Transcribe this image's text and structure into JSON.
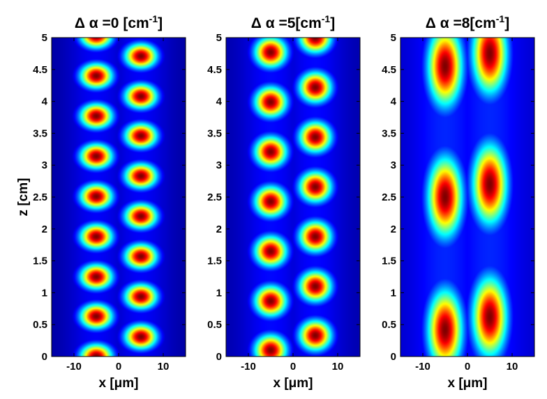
{
  "chart_data": [
    {
      "type": "heatmap",
      "title": "Δ α =0 [cm-1]",
      "title_prefix": "Δ α =0 [cm",
      "title_sup": "-1",
      "title_suffix": "]",
      "xlabel": "x [μm]",
      "ylabel": "z [cm]",
      "xlim": [
        -15,
        15
      ],
      "ylim": [
        0,
        5
      ],
      "xticks": [
        "-10",
        "0",
        "10"
      ],
      "yticks": [
        "0",
        "0.5",
        "1",
        "1.5",
        "2",
        "2.5",
        "3",
        "3.5",
        "4",
        "4.5",
        "5"
      ],
      "colormap": "jet",
      "spot_sigma": [
        2.4,
        0.13
      ],
      "background_level": 0.03,
      "spots": [
        {
          "x": -5,
          "z": 0.0
        },
        {
          "x": -5,
          "z": 0.63
        },
        {
          "x": -5,
          "z": 1.25
        },
        {
          "x": -5,
          "z": 1.88
        },
        {
          "x": -5,
          "z": 2.51
        },
        {
          "x": -5,
          "z": 3.14
        },
        {
          "x": -5,
          "z": 3.77
        },
        {
          "x": -5,
          "z": 4.4
        },
        {
          "x": -5,
          "z": 5.03
        },
        {
          "x": 5,
          "z": 0.31
        },
        {
          "x": 5,
          "z": 0.94
        },
        {
          "x": 5,
          "z": 1.57
        },
        {
          "x": 5,
          "z": 2.2
        },
        {
          "x": 5,
          "z": 2.83
        },
        {
          "x": 5,
          "z": 3.46
        },
        {
          "x": 5,
          "z": 4.08
        },
        {
          "x": 5,
          "z": 4.71
        }
      ]
    },
    {
      "type": "heatmap",
      "title": "Δ α =5[cm-1]",
      "title_prefix": "Δ α =5[cm",
      "title_sup": "-1",
      "title_suffix": "]",
      "xlabel": "x [μm]",
      "ylabel": "",
      "xlim": [
        -15,
        15
      ],
      "ylim": [
        0,
        5
      ],
      "xticks": [
        "-10",
        "0",
        "10"
      ],
      "yticks": [
        "0",
        "0.5",
        "1",
        "1.5",
        "2",
        "2.5",
        "3",
        "3.5",
        "4",
        "4.5",
        "5"
      ],
      "colormap": "jet",
      "spot_sigma": [
        2.4,
        0.16
      ],
      "background_level": 0.04,
      "spots": [
        {
          "x": -5,
          "z": 0.1
        },
        {
          "x": -5,
          "z": 0.87
        },
        {
          "x": -5,
          "z": 1.65
        },
        {
          "x": -5,
          "z": 2.43
        },
        {
          "x": -5,
          "z": 3.21
        },
        {
          "x": -5,
          "z": 3.99
        },
        {
          "x": -5,
          "z": 4.77
        },
        {
          "x": 5,
          "z": 0.33
        },
        {
          "x": 5,
          "z": 1.1
        },
        {
          "x": 5,
          "z": 1.88
        },
        {
          "x": 5,
          "z": 2.66
        },
        {
          "x": 5,
          "z": 3.44
        },
        {
          "x": 5,
          "z": 4.22
        },
        {
          "x": 5,
          "z": 5.0
        }
      ]
    },
    {
      "type": "heatmap",
      "title": "Δ α =8[cm-1]",
      "title_prefix": "Δ α =8[cm",
      "title_sup": "-1",
      "title_suffix": "]",
      "xlabel": "x [μm]",
      "ylabel": "",
      "xlim": [
        -15,
        15
      ],
      "ylim": [
        0,
        5
      ],
      "xticks": [
        "-10",
        "0",
        "10"
      ],
      "yticks": [
        "0",
        "0.5",
        "1",
        "1.5",
        "2",
        "2.5",
        "3",
        "3.5",
        "4",
        "4.5",
        "5"
      ],
      "colormap": "jet",
      "spot_sigma": [
        2.6,
        0.42
      ],
      "background_level": 0.07,
      "spots": [
        {
          "x": -5,
          "z": 0.42
        },
        {
          "x": -5,
          "z": 2.5
        },
        {
          "x": -5,
          "z": 4.55
        },
        {
          "x": 5,
          "z": 0.62
        },
        {
          "x": 5,
          "z": 2.7
        },
        {
          "x": 5,
          "z": 4.75
        }
      ]
    }
  ]
}
